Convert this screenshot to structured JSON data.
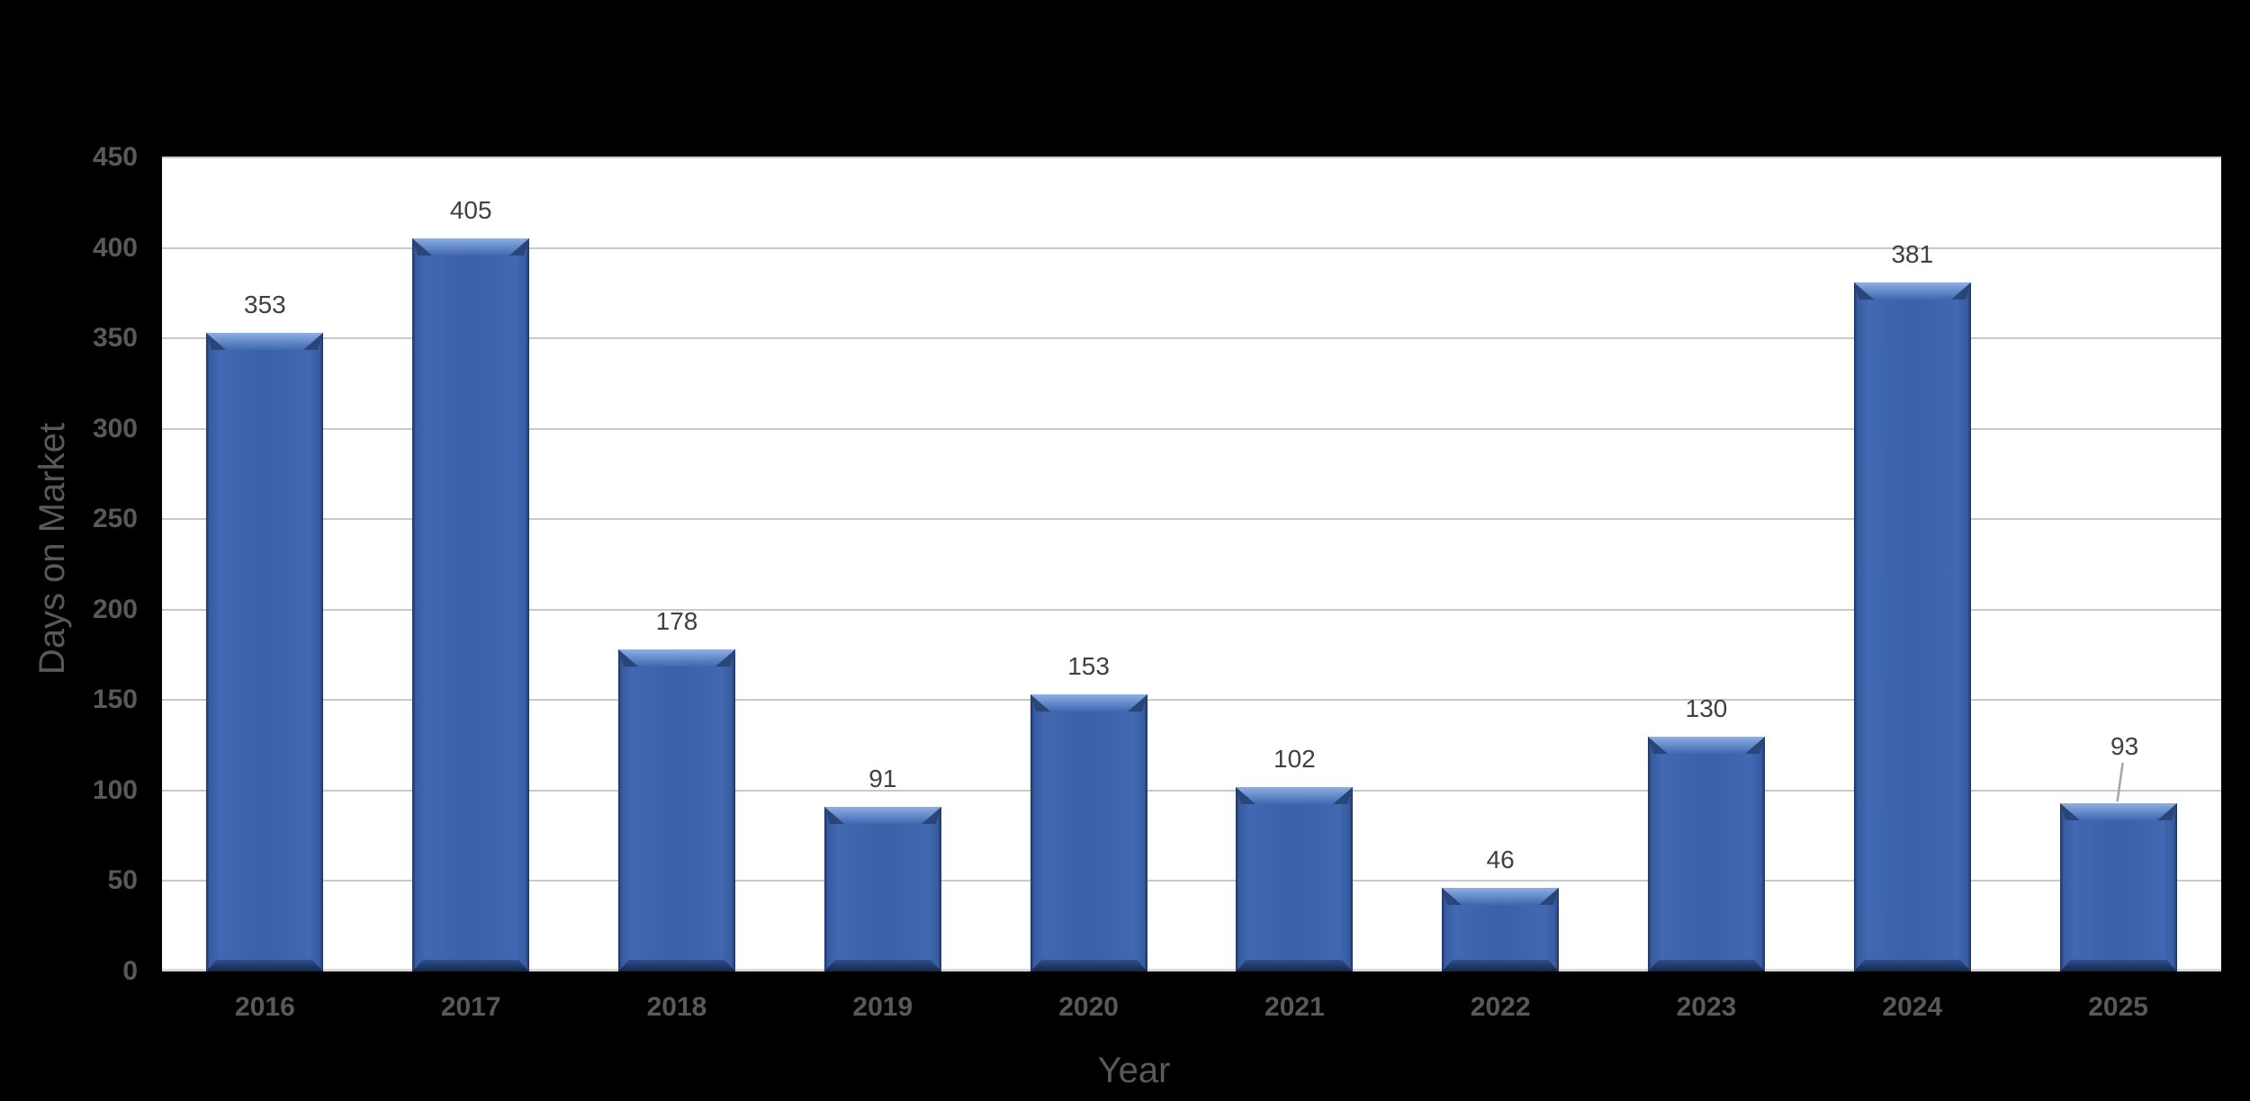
{
  "chart_data": {
    "type": "bar",
    "categories": [
      "2016",
      "2017",
      "2018",
      "2019",
      "2020",
      "2021",
      "2022",
      "2023",
      "2024",
      "2025"
    ],
    "values": [
      353,
      405,
      178,
      91,
      153,
      102,
      46,
      130,
      381,
      93
    ],
    "bar_labels": [
      "353",
      "405",
      "178",
      "91",
      "153",
      "102",
      "46",
      "130",
      "381",
      "93"
    ],
    "xlabel": "Year",
    "ylabel": "Days on Market",
    "ylim": [
      0,
      450
    ],
    "ytick_interval": 50,
    "yticks": [
      "0",
      "50",
      "100",
      "150",
      "200",
      "250",
      "300",
      "350",
      "400",
      "450"
    ],
    "grid": true,
    "legend": false,
    "bar_style": "3d-bevel",
    "annotations": [
      {
        "category": "2025",
        "label": "93",
        "leader_line": true
      }
    ]
  },
  "colors": {
    "background": "#000000",
    "plot_background": "#FFFFFF",
    "bar_fill": "#3A61A8",
    "bar_fill_light": "#4168B0",
    "bar_edge_dark": "#1E335F",
    "bar_bevel_highlight": "#8FAFE2",
    "bar_bevel_corner": "#2A4578",
    "bar_bevel_bottom_top": "#2E4E8F",
    "bar_bevel_bottom": "#152747",
    "gridline": "#C9C9C9",
    "axis_line": "#D9D9D9",
    "tick_label": "#595959",
    "axis_title": "#595959",
    "data_label": "#404040",
    "leader_line": "#A6A6A6"
  }
}
